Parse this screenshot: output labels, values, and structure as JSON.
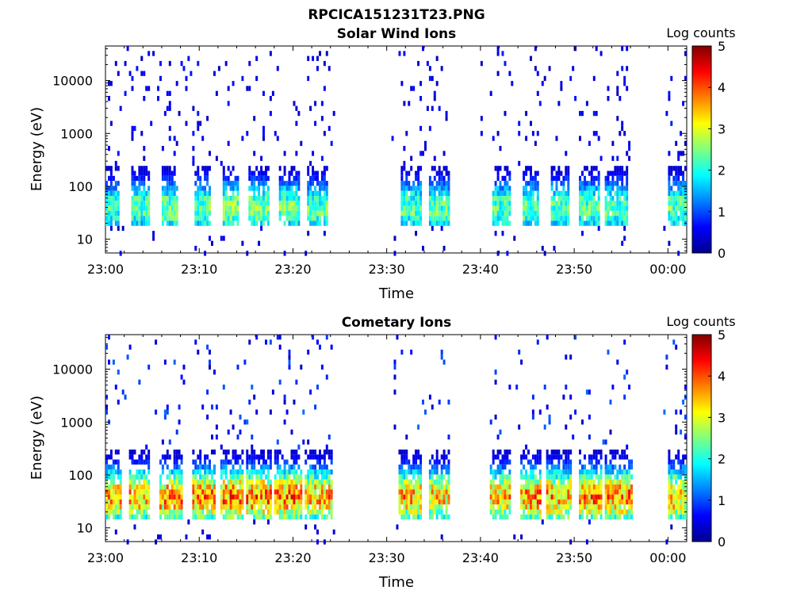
{
  "figure_title": "RPCICA151231T23.PNG",
  "colors": {
    "colormap": [
      "#00008f",
      "#0000ff",
      "#0080ff",
      "#00ffff",
      "#80ff80",
      "#ffff00",
      "#ff8000",
      "#ff0000",
      "#800000"
    ]
  },
  "chart_data": [
    {
      "type": "heatmap",
      "title": "Solar Wind Ions",
      "xlabel": "Time",
      "ylabel": "Energy (eV)",
      "x_tick_labels": [
        "23:00",
        "23:10",
        "23:20",
        "23:30",
        "23:40",
        "23:50",
        "00:00"
      ],
      "x_tick_minutes": [
        0,
        10,
        20,
        30,
        40,
        50,
        60
      ],
      "xlim_minutes": [
        0,
        62
      ],
      "yscale": "log",
      "ylim": [
        5.5,
        45000
      ],
      "y_ticks": [
        10,
        100,
        1000,
        10000
      ],
      "y_tick_labels": [
        "10",
        "100",
        "1000",
        "10000"
      ],
      "colorbar": {
        "label": "Log counts",
        "range": [
          0,
          5
        ],
        "tick_labels": [
          "0",
          "1",
          "2",
          "3",
          "4",
          "5"
        ]
      },
      "data_gaps_minutes": [
        [
          24.3,
          30.5
        ],
        [
          36.7,
          40.0
        ],
        [
          56.3,
          59.5
        ]
      ],
      "bursts": [
        {
          "start_min": 0.0,
          "end_min": 1.4,
          "peak_log_counts": 2.2
        },
        {
          "start_min": 2.6,
          "end_min": 4.5,
          "peak_log_counts": 2.4
        },
        {
          "start_min": 5.8,
          "end_min": 7.7,
          "peak_log_counts": 2.5
        },
        {
          "start_min": 9.3,
          "end_min": 11.2,
          "peak_log_counts": 2.5
        },
        {
          "start_min": 12.3,
          "end_min": 14.2,
          "peak_log_counts": 2.6
        },
        {
          "start_min": 15.2,
          "end_min": 17.3,
          "peak_log_counts": 2.6
        },
        {
          "start_min": 18.3,
          "end_min": 20.5,
          "peak_log_counts": 2.5
        },
        {
          "start_min": 21.4,
          "end_min": 23.6,
          "peak_log_counts": 2.4
        },
        {
          "start_min": 31.5,
          "end_min": 33.5,
          "peak_log_counts": 2.4
        },
        {
          "start_min": 34.5,
          "end_min": 36.5,
          "peak_log_counts": 2.4
        },
        {
          "start_min": 41.2,
          "end_min": 43.0,
          "peak_log_counts": 2.4
        },
        {
          "start_min": 44.5,
          "end_min": 46.2,
          "peak_log_counts": 2.4
        },
        {
          "start_min": 47.3,
          "end_min": 49.3,
          "peak_log_counts": 2.4
        },
        {
          "start_min": 50.5,
          "end_min": 52.5,
          "peak_log_counts": 2.4
        },
        {
          "start_min": 53.2,
          "end_min": 55.5,
          "peak_log_counts": 2.4
        },
        {
          "start_min": 60.0,
          "end_min": 62.0,
          "peak_log_counts": 2.4
        }
      ],
      "burst_energy_range_eV": [
        18,
        240
      ]
    },
    {
      "type": "heatmap",
      "title": "Cometary Ions",
      "xlabel": "Time",
      "ylabel": "Energy (eV)",
      "x_tick_labels": [
        "23:00",
        "23:10",
        "23:20",
        "23:30",
        "23:40",
        "23:50",
        "00:00"
      ],
      "x_tick_minutes": [
        0,
        10,
        20,
        30,
        40,
        50,
        60
      ],
      "xlim_minutes": [
        0,
        62
      ],
      "yscale": "log",
      "ylim": [
        5.5,
        45000
      ],
      "y_ticks": [
        10,
        100,
        1000,
        10000
      ],
      "y_tick_labels": [
        "10",
        "100",
        "1000",
        "10000"
      ],
      "colorbar": {
        "label": "Log counts",
        "range": [
          0,
          5
        ],
        "tick_labels": [
          "0",
          "1",
          "2",
          "3",
          "4",
          "5"
        ]
      },
      "data_gaps_minutes": [
        [
          24.3,
          30.5
        ],
        [
          36.7,
          40.0
        ],
        [
          56.3,
          59.5
        ]
      ],
      "bursts": [
        {
          "start_min": 0.0,
          "end_min": 1.6,
          "peak_log_counts": 3.6
        },
        {
          "start_min": 2.4,
          "end_min": 4.7,
          "peak_log_counts": 3.7
        },
        {
          "start_min": 5.6,
          "end_min": 8.0,
          "peak_log_counts": 3.8
        },
        {
          "start_min": 9.2,
          "end_min": 11.5,
          "peak_log_counts": 3.8
        },
        {
          "start_min": 12.2,
          "end_min": 14.6,
          "peak_log_counts": 3.9
        },
        {
          "start_min": 15.0,
          "end_min": 17.6,
          "peak_log_counts": 3.9
        },
        {
          "start_min": 18.0,
          "end_min": 20.8,
          "peak_log_counts": 3.9
        },
        {
          "start_min": 21.2,
          "end_min": 24.0,
          "peak_log_counts": 3.6
        },
        {
          "start_min": 31.2,
          "end_min": 33.6,
          "peak_log_counts": 3.6
        },
        {
          "start_min": 34.3,
          "end_min": 36.6,
          "peak_log_counts": 3.5
        },
        {
          "start_min": 41.0,
          "end_min": 43.2,
          "peak_log_counts": 3.5
        },
        {
          "start_min": 44.2,
          "end_min": 46.4,
          "peak_log_counts": 3.8
        },
        {
          "start_min": 47.0,
          "end_min": 49.5,
          "peak_log_counts": 3.7
        },
        {
          "start_min": 50.3,
          "end_min": 52.8,
          "peak_log_counts": 3.8
        },
        {
          "start_min": 53.2,
          "end_min": 56.0,
          "peak_log_counts": 3.8
        },
        {
          "start_min": 60.0,
          "end_min": 62.0,
          "peak_log_counts": 3.6
        }
      ],
      "burst_energy_range_eV": [
        14,
        300
      ]
    }
  ]
}
